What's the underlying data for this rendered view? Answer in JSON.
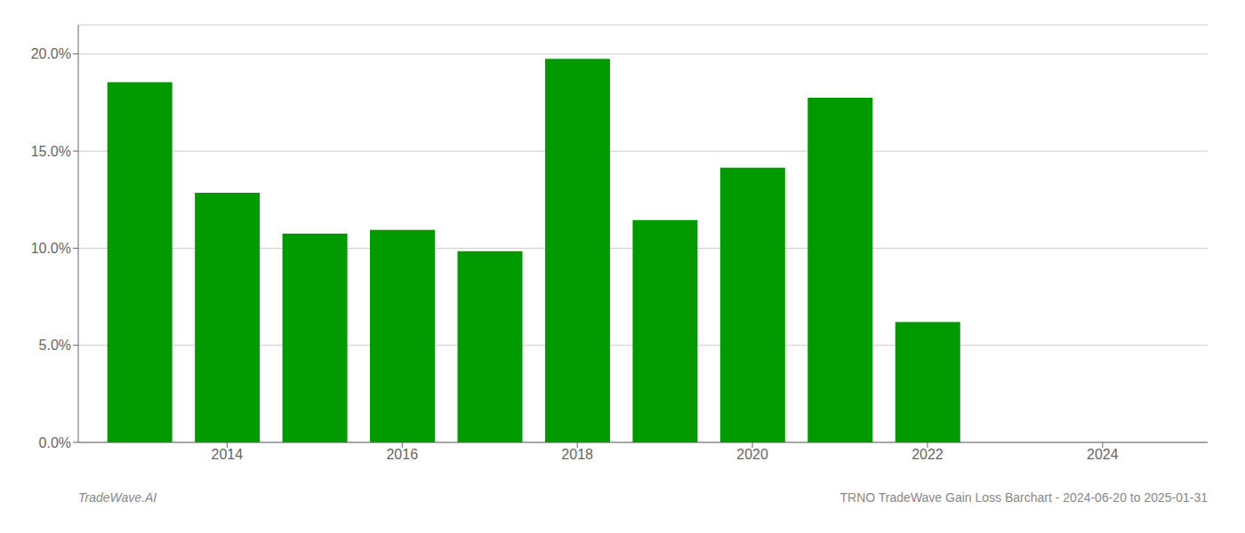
{
  "chart_data": {
    "type": "bar",
    "x": [
      2013,
      2014,
      2015,
      2016,
      2017,
      2018,
      2019,
      2020,
      2021,
      2022
    ],
    "values": [
      0.1855,
      0.1285,
      0.1075,
      0.1095,
      0.0985,
      0.1975,
      0.1145,
      0.1415,
      0.1775,
      0.062
    ],
    "color": "#009900",
    "xlim": [
      2012.3,
      2025.2
    ],
    "xticks": [
      2014,
      2016,
      2018,
      2020,
      2022,
      2024
    ],
    "ylim": [
      0.0,
      0.215
    ],
    "yticks": [
      {
        "value": 0.0,
        "label": "0.0%"
      },
      {
        "value": 0.05,
        "label": "5.0%"
      },
      {
        "value": 0.1,
        "label": "10.0%"
      },
      {
        "value": 0.15,
        "label": "15.0%"
      },
      {
        "value": 0.2,
        "label": "20.0%"
      }
    ],
    "grid": true,
    "annotations": [
      "TradeWave.AI",
      "TRNO TradeWave Gain Loss Barchart - 2024-06-20 to 2025-01-31"
    ]
  }
}
